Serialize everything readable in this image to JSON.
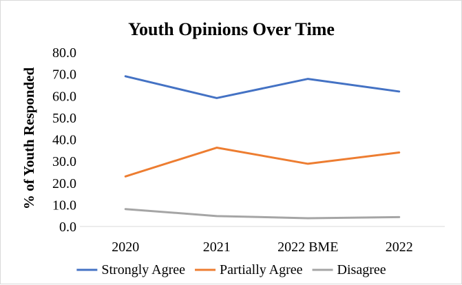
{
  "chart_data": {
    "type": "line",
    "title": "Youth Opinions Over Time",
    "xlabel": "",
    "ylabel": "% of Youth Responded",
    "categories": [
      "2020",
      "2021",
      "2022 BME",
      "2022"
    ],
    "ylim": [
      0,
      80
    ],
    "yticks": [
      "0.0",
      "10.0",
      "20.0",
      "30.0",
      "40.0",
      "50.0",
      "60.0",
      "70.0",
      "80.0"
    ],
    "grid": false,
    "legend_position": "bottom",
    "series": [
      {
        "name": "Strongly Agree",
        "color": "#4472c4",
        "values": [
          69.0,
          59.0,
          67.8,
          62.0
        ]
      },
      {
        "name": "Partially Agree",
        "color": "#ed7d31",
        "values": [
          23.0,
          36.2,
          28.8,
          34.0
        ]
      },
      {
        "name": "Disagree",
        "color": "#a5a5a5",
        "values": [
          8.0,
          4.8,
          3.8,
          4.3
        ]
      }
    ]
  }
}
